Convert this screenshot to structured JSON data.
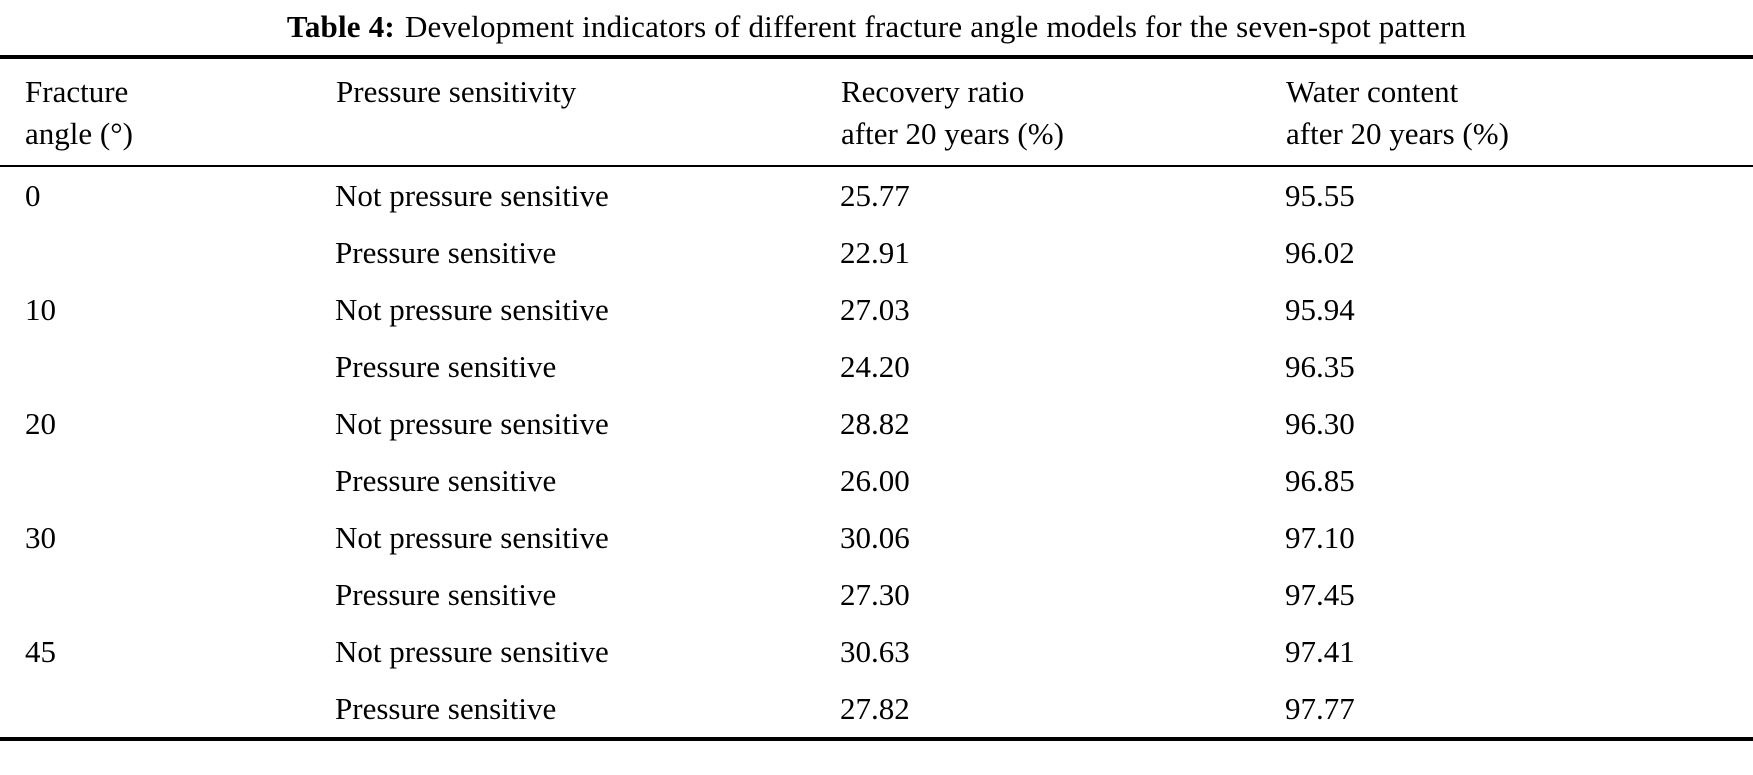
{
  "caption": {
    "label": "Table 4:",
    "text": "Development indicators of different fracture angle models for the seven-spot pattern"
  },
  "table": {
    "column_keys": [
      "fracture-angle",
      "pressure-sensitivity",
      "recovery-ratio",
      "water-content"
    ],
    "headers": [
      {
        "line1": "Fracture",
        "line2": "angle (°)"
      },
      {
        "line1": "Pressure sensitivity",
        "line2": ""
      },
      {
        "line1": "Recovery ratio",
        "line2": "after 20 years (%)"
      },
      {
        "line1": "Water content",
        "line2": "after 20 years (%)"
      }
    ],
    "rows": [
      [
        "0",
        "Not pressure sensitive",
        "25.77",
        "95.55"
      ],
      [
        "",
        "Pressure sensitive",
        "22.91",
        "96.02"
      ],
      [
        "10",
        "Not pressure sensitive",
        "27.03",
        "95.94"
      ],
      [
        "",
        "Pressure sensitive",
        "24.20",
        "96.35"
      ],
      [
        "20",
        "Not pressure sensitive",
        "28.82",
        "96.30"
      ],
      [
        "",
        "Pressure sensitive",
        "26.00",
        "96.85"
      ],
      [
        "30",
        "Not pressure sensitive",
        "30.06",
        "97.10"
      ],
      [
        "",
        "Pressure sensitive",
        "27.30",
        "97.45"
      ],
      [
        "45",
        "Not pressure sensitive",
        "30.63",
        "97.41"
      ],
      [
        "",
        "Pressure sensitive",
        "27.82",
        "97.77"
      ]
    ]
  },
  "colors": {
    "text": "#000000",
    "background": "#ffffff",
    "rule": "#000000"
  }
}
